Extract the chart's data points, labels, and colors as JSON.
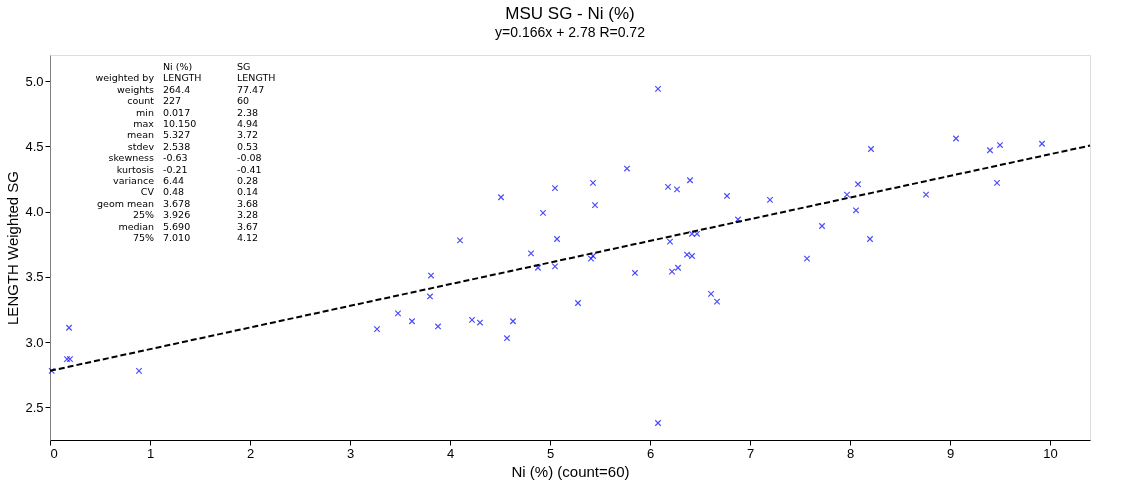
{
  "chart_data": {
    "type": "scatter",
    "title": "MSU SG - Ni (%)",
    "subtitle": "y=0.166x + 2.78  R=0.72",
    "xlabel": "Ni (%) (count=60)",
    "ylabel": "LENGTH Weighted SG",
    "xlim": [
      0,
      10.4
    ],
    "ylim": [
      2.25,
      5.2
    ],
    "xticks": [
      0,
      1,
      2,
      3,
      4,
      5,
      6,
      7,
      8,
      9,
      10
    ],
    "yticks": [
      2.5,
      {
        "value": 3,
        "label": "3.0"
      },
      3.5,
      {
        "value": 4,
        "label": "4.0"
      },
      4.5,
      {
        "value": 5,
        "label": "5.0"
      }
    ],
    "grid": false,
    "series": [
      {
        "color": "#0000ff",
        "marker": "cross",
        "x": [
          0.017,
          0.17,
          0.2,
          0.19,
          0.89,
          3.27,
          3.48,
          3.62,
          3.8,
          3.81,
          3.88,
          4.1,
          4.22,
          4.3,
          4.51,
          4.57,
          4.63,
          4.81,
          4.88,
          4.93,
          5.05,
          5.05,
          5.07,
          5.28,
          5.41,
          5.43,
          5.43,
          5.45,
          5.77,
          5.85,
          6.08,
          6.08,
          6.18,
          6.2,
          6.22,
          6.27,
          6.28,
          6.37,
          6.4,
          6.42,
          6.42,
          6.47,
          6.61,
          6.67,
          6.77,
          6.88,
          7.2,
          7.57,
          7.72,
          7.97,
          8.06,
          8.08,
          8.2,
          8.21,
          8.76,
          9.06,
          9.4,
          9.47,
          9.5,
          9.92
        ],
        "values": [
          2.78,
          2.87,
          2.87,
          3.11,
          2.78,
          3.1,
          3.22,
          3.16,
          3.35,
          3.51,
          3.12,
          3.78,
          3.17,
          3.15,
          4.11,
          3.03,
          3.16,
          3.68,
          3.57,
          3.99,
          3.58,
          4.18,
          3.79,
          3.3,
          3.64,
          4.22,
          3.66,
          4.05,
          4.33,
          3.53,
          4.94,
          2.38,
          4.19,
          3.77,
          3.54,
          4.17,
          3.57,
          3.67,
          4.24,
          3.83,
          3.66,
          3.83,
          3.37,
          3.31,
          4.12,
          3.94,
          4.09,
          3.64,
          3.89,
          4.13,
          4.01,
          4.21,
          3.79,
          4.48,
          4.13,
          4.56,
          4.47,
          4.22,
          4.51,
          4.52
        ]
      },
      {
        "type": "line",
        "color": "#000000",
        "line_style": "dashed",
        "marker": "none",
        "x": [
          0,
          10.4
        ],
        "values": [
          2.78,
          4.506
        ]
      }
    ],
    "annotations": [
      "Ni (%)",
      "SG",
      "weighted by",
      "LENGTH",
      "LENGTH",
      "weights",
      "264.4",
      "77.47",
      "count",
      "227",
      "60",
      "min",
      "0.017",
      "2.38",
      "max",
      "10.150",
      "4.94",
      "mean",
      "5.327",
      "3.72",
      "stdev",
      "2.538",
      "0.53",
      "skewness",
      "-0.63",
      "-0.08",
      "kurtosis",
      "-0.21",
      "-0.41",
      "variance",
      "6.44",
      "0.28",
      "CV",
      "0.48",
      "0.14",
      "geom mean",
      "3.678",
      "3.68",
      "25%",
      "3.926",
      "3.28",
      "median",
      "5.690",
      "3.67",
      "75%",
      "7.010",
      "4.12"
    ]
  }
}
